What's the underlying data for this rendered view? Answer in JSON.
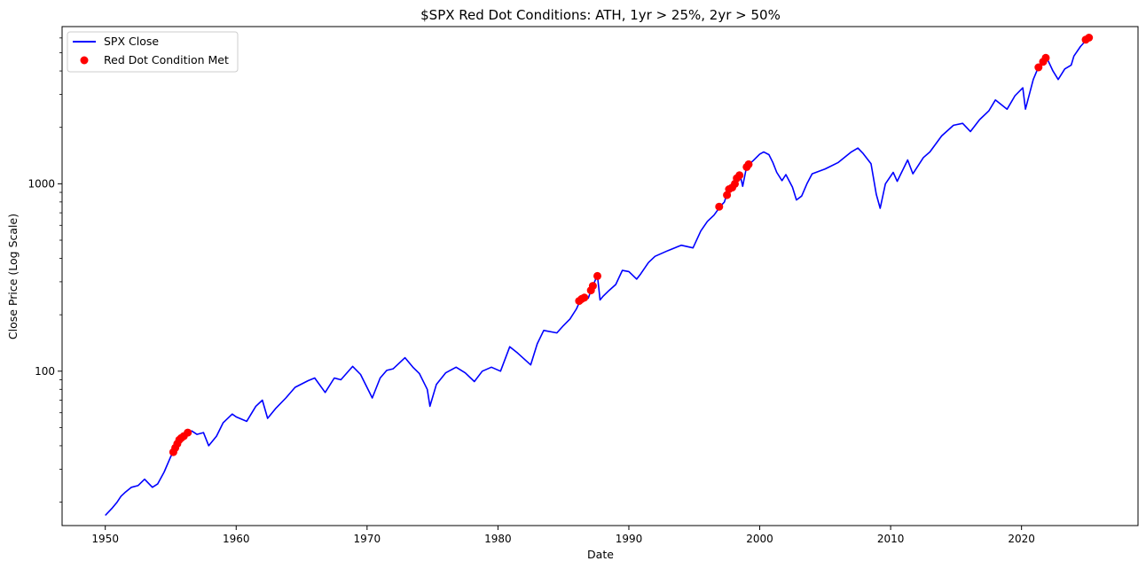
{
  "chart_data": {
    "type": "line",
    "title": "$SPX Red Dot Conditions: ATH, 1yr > 25%, 2yr > 50%",
    "xlabel": "Date",
    "ylabel": "Close Price (Log Scale)",
    "y_scale": "log",
    "x_range": [
      1946.7,
      2028.9
    ],
    "ylim": [
      15,
      6900
    ],
    "x_ticks": [
      1950,
      1960,
      1970,
      1980,
      1990,
      2000,
      2010,
      2020
    ],
    "y_ticks": [
      100,
      1000
    ],
    "grid": false,
    "legend_position": "top-left",
    "series": [
      {
        "name": "SPX Close",
        "kind": "line",
        "color": "#0000ff",
        "points": [
          [
            1950.0,
            17
          ],
          [
            1950.5,
            18.5
          ],
          [
            1950.9,
            20
          ],
          [
            1951.2,
            21.5
          ],
          [
            1951.5,
            22.5
          ],
          [
            1952.0,
            24
          ],
          [
            1952.5,
            24.5
          ],
          [
            1953.0,
            26.5
          ],
          [
            1953.6,
            24
          ],
          [
            1954.0,
            25
          ],
          [
            1954.5,
            29
          ],
          [
            1955.0,
            35
          ],
          [
            1955.3,
            38
          ],
          [
            1955.6,
            42
          ],
          [
            1956.0,
            45
          ],
          [
            1956.3,
            47
          ],
          [
            1956.6,
            48
          ],
          [
            1957.0,
            46
          ],
          [
            1957.5,
            47
          ],
          [
            1957.9,
            40
          ],
          [
            1958.5,
            45
          ],
          [
            1959.0,
            53
          ],
          [
            1959.7,
            59
          ],
          [
            1960.0,
            57
          ],
          [
            1960.8,
            54
          ],
          [
            1961.5,
            65
          ],
          [
            1962.0,
            70
          ],
          [
            1962.4,
            56
          ],
          [
            1963.0,
            63
          ],
          [
            1963.8,
            72
          ],
          [
            1964.5,
            82
          ],
          [
            1965.5,
            89
          ],
          [
            1966.0,
            92
          ],
          [
            1966.8,
            77
          ],
          [
            1967.5,
            92
          ],
          [
            1968.0,
            90
          ],
          [
            1968.9,
            106
          ],
          [
            1969.5,
            96
          ],
          [
            1970.4,
            72
          ],
          [
            1971.0,
            92
          ],
          [
            1971.5,
            101
          ],
          [
            1972.0,
            103
          ],
          [
            1972.9,
            118
          ],
          [
            1973.5,
            105
          ],
          [
            1974.0,
            97
          ],
          [
            1974.6,
            80
          ],
          [
            1974.8,
            65
          ],
          [
            1975.3,
            85
          ],
          [
            1976.0,
            98
          ],
          [
            1976.8,
            105
          ],
          [
            1977.5,
            98
          ],
          [
            1978.2,
            88
          ],
          [
            1978.8,
            100
          ],
          [
            1979.5,
            105
          ],
          [
            1980.2,
            100
          ],
          [
            1980.9,
            135
          ],
          [
            1981.5,
            125
          ],
          [
            1982.5,
            108
          ],
          [
            1983.0,
            140
          ],
          [
            1983.5,
            165
          ],
          [
            1984.5,
            160
          ],
          [
            1985.0,
            175
          ],
          [
            1985.5,
            190
          ],
          [
            1986.0,
            215
          ],
          [
            1986.3,
            240
          ],
          [
            1986.6,
            250
          ],
          [
            1986.9,
            245
          ],
          [
            1987.2,
            280
          ],
          [
            1987.6,
            325
          ],
          [
            1987.8,
            240
          ],
          [
            1988.0,
            250
          ],
          [
            1988.5,
            270
          ],
          [
            1989.0,
            290
          ],
          [
            1989.5,
            345
          ],
          [
            1990.0,
            340
          ],
          [
            1990.6,
            310
          ],
          [
            1990.9,
            330
          ],
          [
            1991.5,
            380
          ],
          [
            1992.0,
            410
          ],
          [
            1993.0,
            440
          ],
          [
            1994.0,
            470
          ],
          [
            1994.9,
            455
          ],
          [
            1995.5,
            560
          ],
          [
            1996.0,
            630
          ],
          [
            1996.5,
            680
          ],
          [
            1997.0,
            760
          ],
          [
            1997.3,
            800
          ],
          [
            1997.6,
            930
          ],
          [
            1997.9,
            950
          ],
          [
            1998.2,
            1050
          ],
          [
            1998.5,
            1120
          ],
          [
            1998.7,
            970
          ],
          [
            1999.0,
            1240
          ],
          [
            1999.5,
            1330
          ],
          [
            2000.0,
            1440
          ],
          [
            2000.3,
            1480
          ],
          [
            2000.7,
            1430
          ],
          [
            2001.0,
            1300
          ],
          [
            2001.3,
            1150
          ],
          [
            2001.7,
            1040
          ],
          [
            2002.0,
            1120
          ],
          [
            2002.5,
            960
          ],
          [
            2002.8,
            820
          ],
          [
            2003.2,
            860
          ],
          [
            2003.6,
            1000
          ],
          [
            2004.0,
            1130
          ],
          [
            2005.0,
            1200
          ],
          [
            2006.0,
            1300
          ],
          [
            2007.0,
            1480
          ],
          [
            2007.5,
            1550
          ],
          [
            2007.9,
            1450
          ],
          [
            2008.5,
            1280
          ],
          [
            2008.9,
            880
          ],
          [
            2009.2,
            740
          ],
          [
            2009.6,
            1000
          ],
          [
            2010.2,
            1150
          ],
          [
            2010.5,
            1030
          ],
          [
            2011.3,
            1340
          ],
          [
            2011.7,
            1130
          ],
          [
            2012.5,
            1380
          ],
          [
            2013.0,
            1480
          ],
          [
            2013.9,
            1800
          ],
          [
            2014.8,
            2050
          ],
          [
            2015.5,
            2100
          ],
          [
            2016.1,
            1900
          ],
          [
            2016.8,
            2200
          ],
          [
            2017.5,
            2450
          ],
          [
            2018.0,
            2800
          ],
          [
            2018.9,
            2500
          ],
          [
            2019.5,
            2950
          ],
          [
            2020.1,
            3250
          ],
          [
            2020.3,
            2500
          ],
          [
            2020.9,
            3600
          ],
          [
            2021.3,
            4200
          ],
          [
            2021.6,
            4400
          ],
          [
            2021.9,
            4750
          ],
          [
            2022.4,
            4000
          ],
          [
            2022.8,
            3600
          ],
          [
            2023.3,
            4100
          ],
          [
            2023.8,
            4300
          ],
          [
            2024.0,
            4800
          ],
          [
            2024.5,
            5400
          ],
          [
            2025.0,
            5900
          ]
        ]
      },
      {
        "name": "Red Dot Condition Met",
        "kind": "scatter",
        "color": "#ff0000",
        "points": [
          [
            1955.2,
            37
          ],
          [
            1955.35,
            39
          ],
          [
            1955.5,
            41
          ],
          [
            1955.65,
            43
          ],
          [
            1955.8,
            44
          ],
          [
            1956.0,
            45
          ],
          [
            1956.3,
            47
          ],
          [
            1986.2,
            237
          ],
          [
            1986.4,
            243
          ],
          [
            1986.6,
            247
          ],
          [
            1987.1,
            270
          ],
          [
            1987.25,
            285
          ],
          [
            1987.6,
            322
          ],
          [
            1996.9,
            755
          ],
          [
            1997.5,
            870
          ],
          [
            1997.65,
            935
          ],
          [
            1997.9,
            955
          ],
          [
            1998.1,
            1000
          ],
          [
            1998.25,
            1070
          ],
          [
            1998.45,
            1110
          ],
          [
            1999.0,
            1230
          ],
          [
            1999.15,
            1270
          ],
          [
            2021.3,
            4180
          ],
          [
            2021.65,
            4480
          ],
          [
            2021.85,
            4700
          ],
          [
            2024.9,
            5870
          ],
          [
            2025.15,
            6020
          ]
        ]
      }
    ]
  }
}
